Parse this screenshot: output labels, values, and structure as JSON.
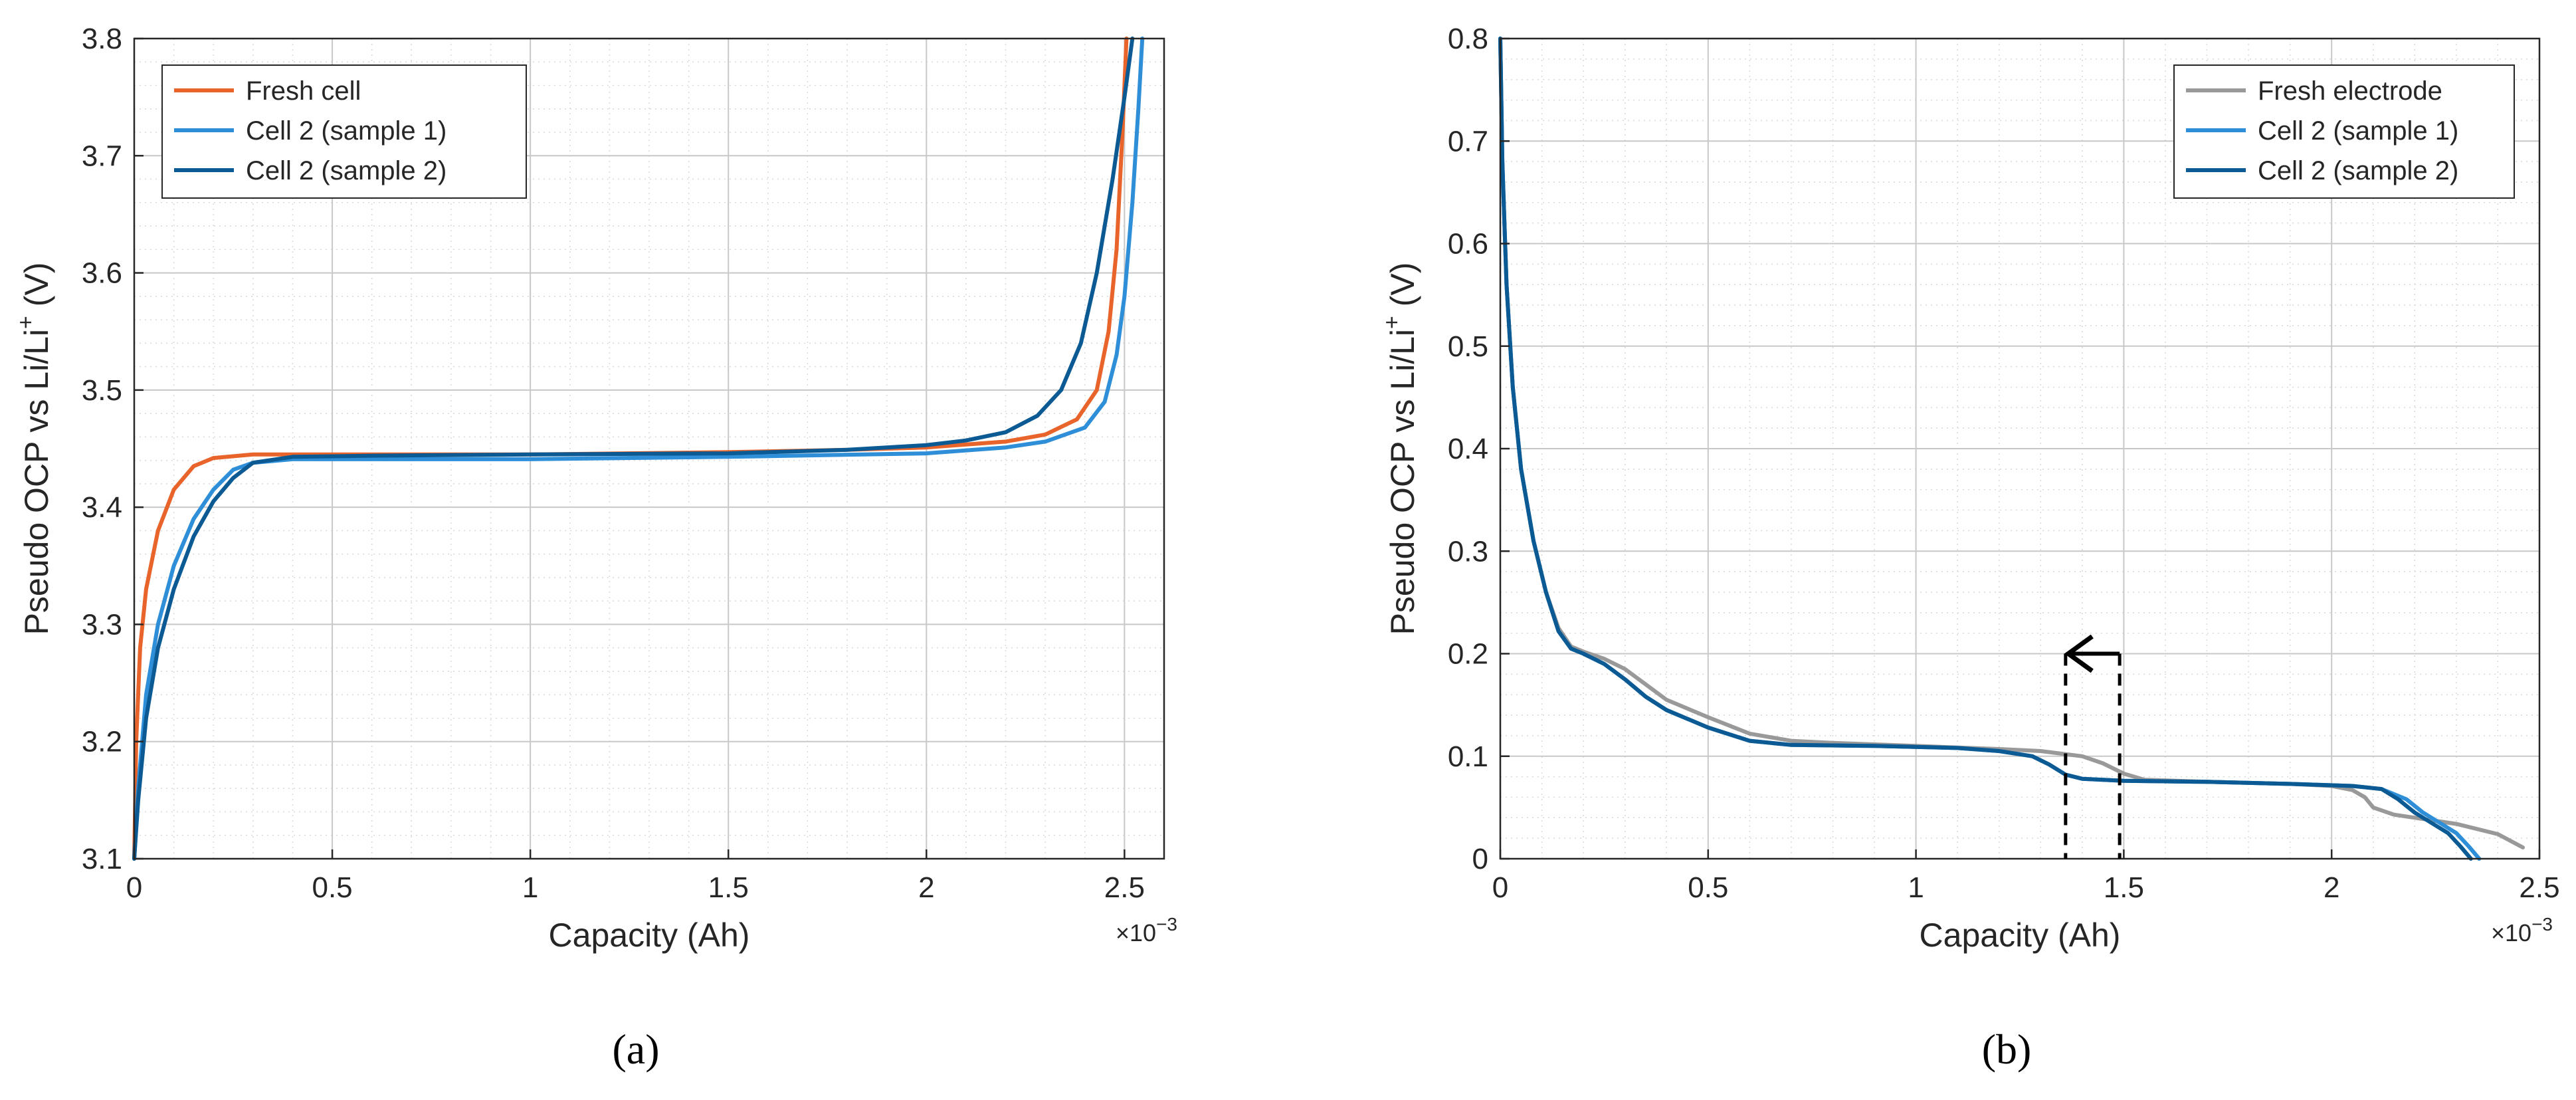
{
  "chart_data": [
    {
      "type": "line",
      "panel_label": "(a)",
      "xlabel": "Capacity (Ah)",
      "ylabel": "Pseudo OCP vs Li/Li",
      "ylabel_sup": "+",
      "ylabel_unit": " (V)",
      "x_exponent_base": "×10",
      "x_exponent_power": "−3",
      "xlim": [
        0,
        2.6
      ],
      "ylim": [
        3.1,
        3.8
      ],
      "x_ticks": [
        0,
        0.5,
        1,
        1.5,
        2,
        2.5
      ],
      "x_tick_labels": [
        "0",
        "0.5",
        "1",
        "1.5",
        "2",
        "2.5"
      ],
      "y_ticks": [
        3.1,
        3.2,
        3.3,
        3.4,
        3.5,
        3.6,
        3.7,
        3.8
      ],
      "y_tick_labels": [
        "3.1",
        "3.2",
        "3.3",
        "3.4",
        "3.5",
        "3.6",
        "3.7",
        "3.8"
      ],
      "grid": true,
      "legend_position": "top-left",
      "series": [
        {
          "name": "Fresh cell",
          "color": "#E8642A",
          "points": [
            [
              0,
              3.1
            ],
            [
              0.005,
              3.2
            ],
            [
              0.015,
              3.28
            ],
            [
              0.03,
              3.33
            ],
            [
              0.06,
              3.38
            ],
            [
              0.1,
              3.415
            ],
            [
              0.15,
              3.435
            ],
            [
              0.2,
              3.442
            ],
            [
              0.3,
              3.445
            ],
            [
              0.5,
              3.445
            ],
            [
              1.0,
              3.445
            ],
            [
              1.5,
              3.447
            ],
            [
              1.8,
              3.449
            ],
            [
              2.0,
              3.451
            ],
            [
              2.2,
              3.456
            ],
            [
              2.3,
              3.462
            ],
            [
              2.38,
              3.475
            ],
            [
              2.43,
              3.5
            ],
            [
              2.46,
              3.55
            ],
            [
              2.48,
              3.62
            ],
            [
              2.495,
              3.72
            ],
            [
              2.505,
              3.8
            ]
          ]
        },
        {
          "name": "Cell 2 (sample 1)",
          "color": "#2E8FD8",
          "points": [
            [
              0,
              3.1
            ],
            [
              0.01,
              3.16
            ],
            [
              0.03,
              3.24
            ],
            [
              0.06,
              3.3
            ],
            [
              0.1,
              3.35
            ],
            [
              0.15,
              3.39
            ],
            [
              0.2,
              3.415
            ],
            [
              0.25,
              3.432
            ],
            [
              0.3,
              3.438
            ],
            [
              0.4,
              3.441
            ],
            [
              0.6,
              3.441
            ],
            [
              1.0,
              3.441
            ],
            [
              1.5,
              3.443
            ],
            [
              2.0,
              3.446
            ],
            [
              2.2,
              3.451
            ],
            [
              2.3,
              3.456
            ],
            [
              2.4,
              3.468
            ],
            [
              2.45,
              3.49
            ],
            [
              2.48,
              3.53
            ],
            [
              2.5,
              3.58
            ],
            [
              2.52,
              3.66
            ],
            [
              2.535,
              3.74
            ],
            [
              2.545,
              3.8
            ]
          ]
        },
        {
          "name": "Cell 2 (sample 2)",
          "color": "#0B5A94",
          "points": [
            [
              0,
              3.1
            ],
            [
              0.01,
              3.15
            ],
            [
              0.03,
              3.22
            ],
            [
              0.06,
              3.28
            ],
            [
              0.1,
              3.33
            ],
            [
              0.15,
              3.375
            ],
            [
              0.2,
              3.405
            ],
            [
              0.25,
              3.425
            ],
            [
              0.3,
              3.438
            ],
            [
              0.4,
              3.443
            ],
            [
              0.6,
              3.444
            ],
            [
              1.0,
              3.445
            ],
            [
              1.5,
              3.446
            ],
            [
              1.8,
              3.449
            ],
            [
              2.0,
              3.453
            ],
            [
              2.1,
              3.457
            ],
            [
              2.2,
              3.464
            ],
            [
              2.28,
              3.478
            ],
            [
              2.34,
              3.5
            ],
            [
              2.39,
              3.54
            ],
            [
              2.43,
              3.6
            ],
            [
              2.47,
              3.68
            ],
            [
              2.5,
              3.75
            ],
            [
              2.52,
              3.8
            ]
          ]
        }
      ]
    },
    {
      "type": "line",
      "panel_label": "(b)",
      "xlabel": "Capacity (Ah)",
      "ylabel": "Pseudo OCP vs Li/Li",
      "ylabel_sup": "+",
      "ylabel_unit": " (V)",
      "x_exponent_base": "×10",
      "x_exponent_power": "−3",
      "xlim": [
        0,
        2.5
      ],
      "ylim": [
        0,
        0.8
      ],
      "x_ticks": [
        0,
        0.5,
        1,
        1.5,
        2,
        2.5
      ],
      "x_tick_labels": [
        "0",
        "0.5",
        "1",
        "1.5",
        "2",
        "2.5"
      ],
      "y_ticks": [
        0,
        0.1,
        0.2,
        0.3,
        0.4,
        0.5,
        0.6,
        0.7,
        0.8
      ],
      "y_tick_labels": [
        "0",
        "0.1",
        "0.2",
        "0.3",
        "0.4",
        "0.5",
        "0.6",
        "0.7",
        "0.8"
      ],
      "grid": true,
      "legend_position": "top-right",
      "annotation": {
        "type": "dashed-bracket-arrow",
        "x_from": 1.49,
        "x_to": 1.36,
        "y_top": 0.2,
        "arrow_direction": "left"
      },
      "series": [
        {
          "name": "Fresh electrode",
          "color": "#999999",
          "points": [
            [
              0,
              0.8
            ],
            [
              0.005,
              0.68
            ],
            [
              0.015,
              0.56
            ],
            [
              0.03,
              0.46
            ],
            [
              0.05,
              0.38
            ],
            [
              0.08,
              0.31
            ],
            [
              0.11,
              0.26
            ],
            [
              0.14,
              0.225
            ],
            [
              0.17,
              0.207
            ],
            [
              0.2,
              0.202
            ],
            [
              0.25,
              0.195
            ],
            [
              0.3,
              0.185
            ],
            [
              0.35,
              0.17
            ],
            [
              0.4,
              0.155
            ],
            [
              0.5,
              0.138
            ],
            [
              0.6,
              0.122
            ],
            [
              0.7,
              0.115
            ],
            [
              0.8,
              0.113
            ],
            [
              1.0,
              0.11
            ],
            [
              1.2,
              0.107
            ],
            [
              1.3,
              0.105
            ],
            [
              1.4,
              0.1
            ],
            [
              1.45,
              0.093
            ],
            [
              1.5,
              0.083
            ],
            [
              1.55,
              0.077
            ],
            [
              1.7,
              0.075
            ],
            [
              1.9,
              0.073
            ],
            [
              2.0,
              0.071
            ],
            [
              2.05,
              0.067
            ],
            [
              2.08,
              0.06
            ],
            [
              2.1,
              0.05
            ],
            [
              2.15,
              0.043
            ],
            [
              2.2,
              0.04
            ],
            [
              2.3,
              0.034
            ],
            [
              2.4,
              0.024
            ],
            [
              2.46,
              0.011
            ]
          ]
        },
        {
          "name": "Cell 2 (sample 1)",
          "color": "#2E8FD8",
          "points": [
            [
              0,
              0.8
            ],
            [
              0.005,
              0.68
            ],
            [
              0.015,
              0.56
            ],
            [
              0.03,
              0.46
            ],
            [
              0.05,
              0.38
            ],
            [
              0.08,
              0.31
            ],
            [
              0.11,
              0.26
            ],
            [
              0.14,
              0.222
            ],
            [
              0.17,
              0.205
            ],
            [
              0.2,
              0.2
            ],
            [
              0.25,
              0.19
            ],
            [
              0.3,
              0.175
            ],
            [
              0.35,
              0.158
            ],
            [
              0.4,
              0.145
            ],
            [
              0.5,
              0.128
            ],
            [
              0.6,
              0.115
            ],
            [
              0.7,
              0.111
            ],
            [
              0.9,
              0.11
            ],
            [
              1.1,
              0.108
            ],
            [
              1.2,
              0.105
            ],
            [
              1.28,
              0.1
            ],
            [
              1.32,
              0.092
            ],
            [
              1.36,
              0.082
            ],
            [
              1.4,
              0.078
            ],
            [
              1.5,
              0.076
            ],
            [
              1.7,
              0.075
            ],
            [
              1.9,
              0.073
            ],
            [
              2.05,
              0.071
            ],
            [
              2.12,
              0.068
            ],
            [
              2.18,
              0.058
            ],
            [
              2.22,
              0.045
            ],
            [
              2.26,
              0.035
            ],
            [
              2.3,
              0.025
            ],
            [
              2.33,
              0.012
            ],
            [
              2.355,
              0.0
            ]
          ]
        },
        {
          "name": "Cell 2 (sample 2)",
          "color": "#0B5A94",
          "points": [
            [
              0,
              0.8
            ],
            [
              0.005,
              0.68
            ],
            [
              0.015,
              0.56
            ],
            [
              0.03,
              0.46
            ],
            [
              0.05,
              0.38
            ],
            [
              0.08,
              0.31
            ],
            [
              0.11,
              0.26
            ],
            [
              0.14,
              0.222
            ],
            [
              0.17,
              0.205
            ],
            [
              0.2,
              0.2
            ],
            [
              0.25,
              0.19
            ],
            [
              0.3,
              0.175
            ],
            [
              0.35,
              0.158
            ],
            [
              0.4,
              0.145
            ],
            [
              0.5,
              0.128
            ],
            [
              0.6,
              0.115
            ],
            [
              0.7,
              0.111
            ],
            [
              0.9,
              0.11
            ],
            [
              1.1,
              0.108
            ],
            [
              1.2,
              0.105
            ],
            [
              1.28,
              0.1
            ],
            [
              1.32,
              0.092
            ],
            [
              1.36,
              0.082
            ],
            [
              1.4,
              0.078
            ],
            [
              1.5,
              0.076
            ],
            [
              1.7,
              0.075
            ],
            [
              1.9,
              0.073
            ],
            [
              2.05,
              0.071
            ],
            [
              2.12,
              0.068
            ],
            [
              2.16,
              0.058
            ],
            [
              2.2,
              0.045
            ],
            [
              2.24,
              0.035
            ],
            [
              2.28,
              0.025
            ],
            [
              2.31,
              0.012
            ],
            [
              2.335,
              0.0
            ]
          ]
        }
      ]
    }
  ]
}
